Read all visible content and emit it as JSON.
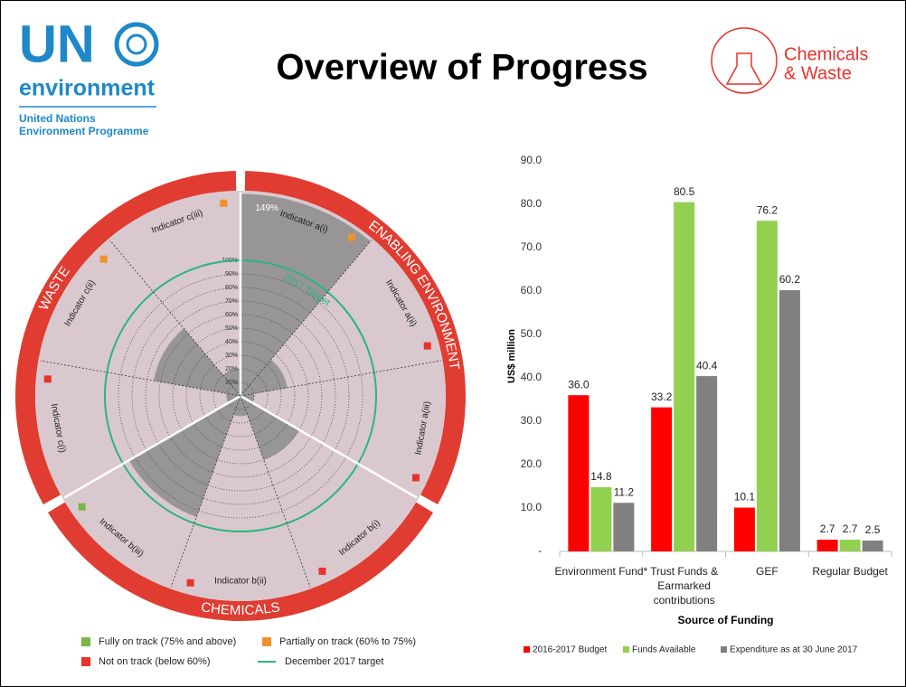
{
  "header": {
    "logo_main": "UN",
    "logo_sub": "environment",
    "org_line1": "United Nations",
    "org_line2": "Environment Programme",
    "title": "Overview of Progress",
    "brand_line1": "Chemicals",
    "brand_line2": "& Waste"
  },
  "chart_data": [
    {
      "type": "polar",
      "groups": [
        "ENABLING ENVIRONMENT",
        "CHEMICALS",
        "WASTE"
      ],
      "categories": [
        "Indicator a(i)",
        "Indicator a(ii)",
        "Indicator a(iii)",
        "Indicator b(i)",
        "Indicator b(ii)",
        "Indicator b(iii)",
        "Indicator c(i)",
        "Indicator c(ii)",
        "Indicator c(iii)"
      ],
      "values": [
        149,
        35,
        10,
        50,
        15,
        95,
        10,
        65,
        20
      ],
      "value_labels": [
        "149%",
        null,
        null,
        null,
        null,
        null,
        null,
        null,
        null
      ],
      "marker_colors": [
        "#f0922b",
        "#e8332a",
        "#e8332a",
        "#e8332a",
        "#e8332a",
        "#7ab648",
        "#e8332a",
        "#f0922b",
        "#f0922b"
      ],
      "color": "#8f8f8f",
      "rlim": [
        0,
        150
      ],
      "rticks": [
        {
          "value": 10,
          "label": "10%"
        },
        {
          "value": 20,
          "label": "20%"
        },
        {
          "value": 30,
          "label": "30%"
        },
        {
          "value": 40,
          "label": "40%"
        },
        {
          "value": 50,
          "label": "50%"
        },
        {
          "value": 60,
          "label": "60%"
        },
        {
          "value": 70,
          "label": "70%"
        },
        {
          "value": 80,
          "label": "80%"
        },
        {
          "value": 90,
          "label": "90%"
        },
        {
          "value": 100,
          "label": "100%"
        }
      ],
      "target": 100,
      "target_label": "2017 Target",
      "target_color": "#2bb57e",
      "legend": [
        {
          "color": "#7ab648",
          "label": "Fully on track (75% and above)"
        },
        {
          "color": "#f0922b",
          "label": "Partially on track (60% to 75%)"
        },
        {
          "color": "#e8332a",
          "label": "Not on track (below 60%)"
        },
        {
          "color": "#2bb57e",
          "label": "December 2017 target",
          "line": true
        }
      ]
    },
    {
      "type": "bar",
      "y_label": "US$ million",
      "x_label": "Source of Funding",
      "categories": [
        "Environment Fund*",
        "Trust Funds & Earmarked contributions",
        "GEF",
        "Regular Budget"
      ],
      "series": [
        {
          "name": "2016-2017 Budget",
          "color": "#ff0000",
          "values": [
            36,
            33.2,
            10.1,
            2.7
          ],
          "value_labels": [
            "36.0",
            "33.2",
            "10.1",
            "2.7"
          ]
        },
        {
          "name": "Funds Available",
          "color": "#92d050",
          "values": [
            14.8,
            80.5,
            76.2,
            2.7
          ],
          "value_labels": [
            "14.8",
            "80.5",
            "76.2",
            "2.7"
          ]
        },
        {
          "name": "Expenditure as at 30 June 2017",
          "color": "#808080",
          "values": [
            11.2,
            40.4,
            60.2,
            2.5
          ],
          "value_labels": [
            "11.2",
            "40.4",
            "60.2",
            "2.5"
          ]
        }
      ],
      "ylim": [
        0,
        90
      ],
      "yticks": [
        {
          "value": 0,
          "label": "-"
        },
        {
          "value": 10,
          "label": "10.0"
        },
        {
          "value": 20,
          "label": "20.0"
        },
        {
          "value": 30,
          "label": "30.0"
        },
        {
          "value": 40,
          "label": "40.0"
        },
        {
          "value": 50,
          "label": "50.0"
        },
        {
          "value": 60,
          "label": "60.0"
        },
        {
          "value": 70,
          "label": "70.0"
        },
        {
          "value": 80,
          "label": "80.0"
        },
        {
          "value": 90,
          "label": "90.0"
        }
      ]
    }
  ]
}
